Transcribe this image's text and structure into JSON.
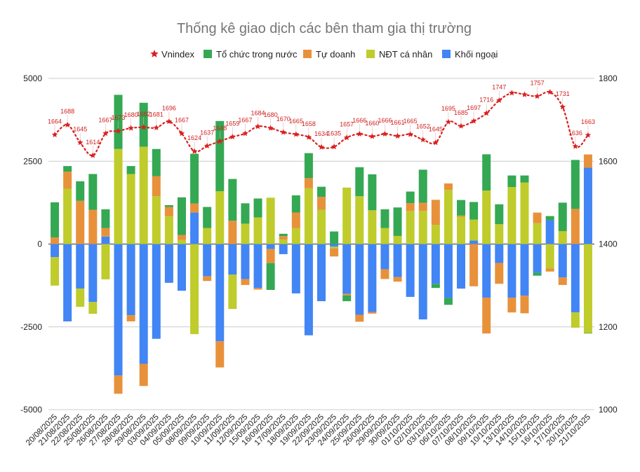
{
  "chart_data": {
    "type": "bar",
    "stacked": true,
    "title": "Thống kê giao dịch các bên tham gia thị trường",
    "legend_position": "top",
    "grid": true,
    "ylim_left": [
      -5000,
      5000
    ],
    "yticks_left": [
      "5000",
      "2500",
      "0",
      "-2500",
      "-5000"
    ],
    "ylim_right": [
      1000,
      1800
    ],
    "yticks_right": [
      "1800",
      "1600",
      "1400",
      "1200",
      "1000"
    ],
    "categories": [
      "20/08/2025",
      "21/08/2025",
      "22/08/2025",
      "25/08/2025",
      "26/08/2025",
      "27/08/2025",
      "28/08/2025",
      "29/08/2025",
      "03/09/2025",
      "04/09/2025",
      "05/09/2025",
      "08/09/2025",
      "09/09/2025",
      "10/09/2025",
      "11/09/2025",
      "12/09/2025",
      "15/09/2025",
      "16/09/2025",
      "17/09/2025",
      "18/09/2025",
      "19/09/2025",
      "22/09/2025",
      "23/09/2025",
      "24/09/2025",
      "25/09/2025",
      "26/09/2025",
      "29/09/2025",
      "30/09/2025",
      "01/10/2025",
      "02/10/2025",
      "03/10/2025",
      "06/10/2025",
      "07/10/2025",
      "08/10/2025",
      "09/10/2025",
      "10/10/2025",
      "13/10/2025",
      "14/10/2025",
      "15/10/2025",
      "16/10/2025",
      "17/10/2025",
      "20/10/2025",
      "21/10/2025"
    ],
    "series": [
      {
        "name": "Khối ngoại",
        "type": "bar",
        "axis": "left",
        "color": "#4285f4",
        "values": [
          -395,
          -2335,
          -1345,
          -1750,
          225,
          -3970,
          -2150,
          -3615,
          -2860,
          -1170,
          -1410,
          950,
          -975,
          -2935,
          -925,
          -1060,
          -1325,
          -150,
          -305,
          -1490,
          -2755,
          -1725,
          -80,
          -1500,
          -2135,
          -2050,
          -760,
          -995,
          -1595,
          -2275,
          -1200,
          -1630,
          -1345,
          105,
          -1620,
          -570,
          -1620,
          -1560,
          -865,
          720,
          -1010,
          -2065,
          2305
        ]
      },
      {
        "name": "NĐT cá nhân",
        "type": "bar",
        "axis": "left",
        "color": "#bfcc2b",
        "values": [
          -860,
          1670,
          -550,
          -355,
          -1065,
          2870,
          2115,
          2940,
          1445,
          845,
          120,
          -2720,
          485,
          1595,
          -1035,
          615,
          805,
          1400,
          135,
          485,
          1685,
          1035,
          -50,
          1705,
          1445,
          1020,
          485,
          245,
          1000,
          1000,
          580,
          1635,
          825,
          635,
          1615,
          600,
          1720,
          1860,
          635,
          -740,
          390,
          -460,
          -2685
        ]
      },
      {
        "name": "Tự doanh",
        "type": "bar",
        "axis": "left",
        "color": "#e8913b",
        "values": [
          200,
          515,
          1305,
          1035,
          260,
          -550,
          -185,
          -670,
          605,
          275,
          155,
          275,
          -140,
          -790,
          705,
          -175,
          -50,
          -425,
          105,
          465,
          305,
          390,
          -245,
          -50,
          -210,
          -50,
          -295,
          -140,
          235,
          245,
          755,
          195,
          35,
          -1275,
          -1080,
          -630,
          -445,
          -530,
          315,
          -90,
          -225,
          1060,
          400
        ]
      },
      {
        "name": "Tổ chức trong nước",
        "type": "bar",
        "axis": "left",
        "color": "#34a853",
        "values": [
          1060,
          170,
          590,
          1080,
          565,
          1635,
          240,
          1325,
          820,
          55,
          1135,
          1500,
          635,
          2120,
          1260,
          615,
          570,
          -810,
          70,
          520,
          755,
          305,
          380,
          -175,
          875,
          1085,
          565,
          860,
          350,
          1000,
          -125,
          -205,
          470,
          530,
          1095,
          600,
          350,
          210,
          -90,
          125,
          860,
          1480,
          -15
        ]
      },
      {
        "name": "Vnindex",
        "type": "line",
        "axis": "right",
        "color": "#d9201f",
        "marker": "star",
        "line_style": "dotted",
        "values": [
          1664,
          1688,
          1645,
          1614,
          1667,
          1673,
          1680,
          1682,
          1681,
          1696,
          1667,
          1624,
          1637,
          1648,
          1659,
          1667,
          1684,
          1680,
          1670,
          1665,
          1658,
          1634,
          1635,
          1657,
          1666,
          1660,
          1666,
          1661,
          1665,
          1652,
          1645,
          1695,
          1685,
          1697,
          1716,
          1747,
          1765,
          1761,
          1757,
          1767,
          1731,
          1636,
          1663
        ],
        "point_labels": [
          "1664",
          "1688",
          "1645",
          "1614",
          "1667",
          "1673",
          "1680",
          "1682",
          "1681",
          "1696",
          "1667",
          "1624",
          "1637",
          "1648",
          "1659",
          "1667",
          "1684",
          "1680",
          "1670",
          "1665",
          "1658",
          "1634",
          "1635",
          "1657",
          "1666",
          "1660",
          "1666",
          "1661",
          "1665",
          "1652",
          "1645",
          "1695",
          "1685",
          "1697",
          "1716",
          "1747",
          null,
          null,
          "1757",
          null,
          "1731",
          "1636",
          "1663"
        ]
      }
    ],
    "legend": [
      "Vnindex",
      "Tổ chức trong nước",
      "Tự doanh",
      "NĐT cá nhân",
      "Khối ngoại"
    ]
  }
}
